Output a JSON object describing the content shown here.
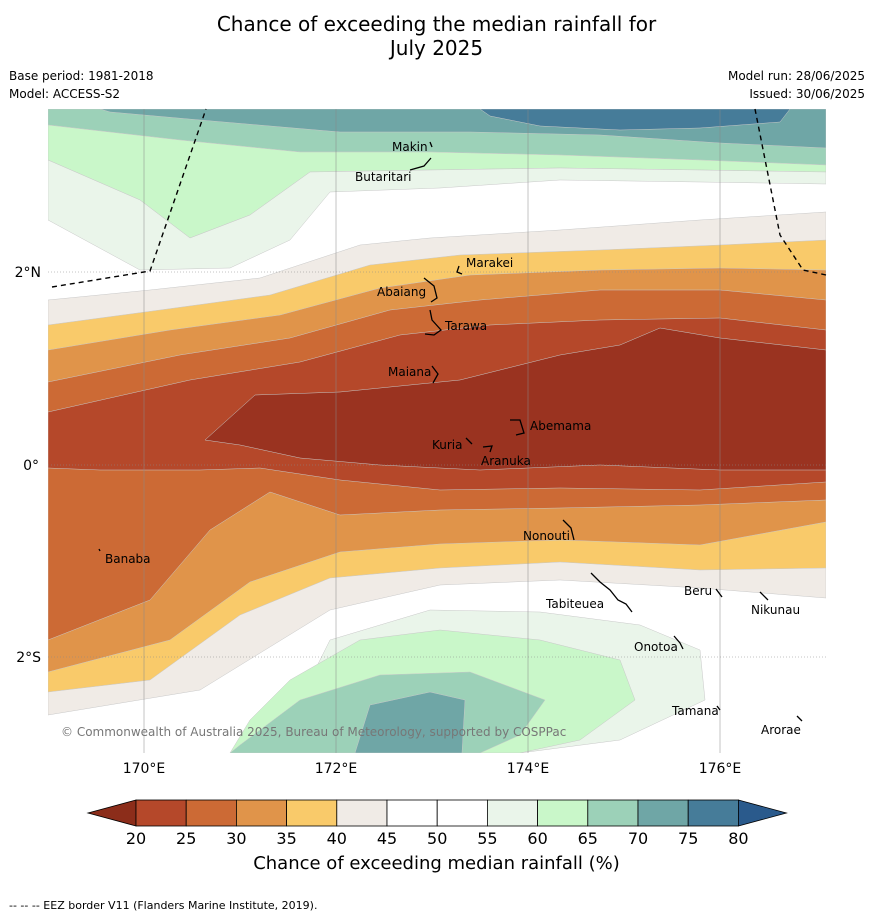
{
  "title_line1": "Chance of exceeding the median rainfall for",
  "title_line2": "July 2025",
  "base_period": "Base period: 1981-2018",
  "model": "Model: ACCESS-S2",
  "model_run": "Model run: 28/06/2025",
  "issued": "Issued: 30/06/2025",
  "copyright": "© Commonwealth of Australia 2025, Bureau of Meteorology, supported by COSPPac",
  "footer": "-- -- -- EEZ border V11 (Flanders Marine Institute, 2019).",
  "colorbar": {
    "label": "Chance of exceeding median rainfall (%)",
    "ticks": [
      "20",
      "25",
      "30",
      "35",
      "40",
      "45",
      "50",
      "55",
      "60",
      "65",
      "70",
      "75",
      "80"
    ],
    "colors": [
      "#8c2d1a",
      "#b5482a",
      "#cc6a35",
      "#e0944a",
      "#f9ca6a",
      "#f0ebe6",
      "#ffffff",
      "#ffffff",
      "#eaf5ea",
      "#c9f7c9",
      "#9cd1b8",
      "#6fa6a6",
      "#467c99",
      "#2a5a8c"
    ]
  },
  "axes": {
    "x_ticks": [
      "170°E",
      "172°E",
      "174°E",
      "176°E"
    ],
    "y_ticks": [
      "2°N",
      "0°",
      "2°S"
    ]
  },
  "places": [
    {
      "name": "Makin"
    },
    {
      "name": "Butaritari"
    },
    {
      "name": "Marakei"
    },
    {
      "name": "Abaiang"
    },
    {
      "name": "Tarawa"
    },
    {
      "name": "Maiana"
    },
    {
      "name": "Abemama"
    },
    {
      "name": "Kuria"
    },
    {
      "name": "Aranuka"
    },
    {
      "name": "Nonouti"
    },
    {
      "name": "Banaba"
    },
    {
      "name": "Beru"
    },
    {
      "name": "Tabiteuea"
    },
    {
      "name": "Nikunau"
    },
    {
      "name": "Onotoa"
    },
    {
      "name": "Tamana"
    },
    {
      "name": "Arorae"
    }
  ]
}
